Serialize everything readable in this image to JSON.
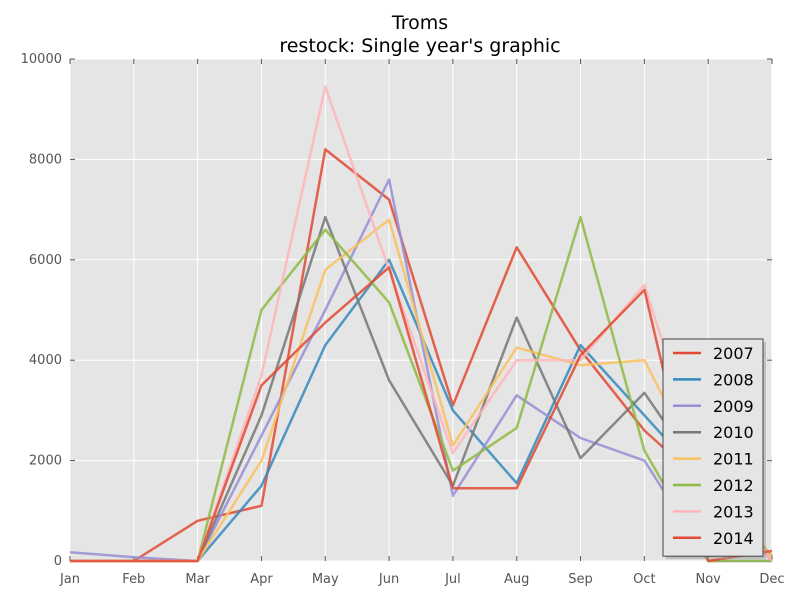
{
  "chart_data": {
    "type": "line",
    "title": "Troms",
    "subtitle": "restock: Single year's graphic",
    "xlabel": "",
    "ylabel": "",
    "categories": [
      "Jan",
      "Feb",
      "Mar",
      "Apr",
      "May",
      "Jun",
      "Jul",
      "Aug",
      "Sep",
      "Oct",
      "Nov",
      "Dec"
    ],
    "ylim": [
      0,
      10000
    ],
    "yticks": [
      0,
      2000,
      4000,
      6000,
      8000,
      10000
    ],
    "grid": true,
    "legend_position": "lower-right",
    "background": "#e5e5e5",
    "series": [
      {
        "name": "2007",
        "color": "#e24a33",
        "values": [
          0,
          0,
          800,
          1100,
          8200,
          7200,
          3100,
          6250,
          4200,
          2600,
          1450,
          0
        ]
      },
      {
        "name": "2008",
        "color": "#348abd",
        "values": [
          0,
          0,
          0,
          1500,
          4300,
          6000,
          3000,
          1550,
          4300,
          2900,
          1500,
          100
        ]
      },
      {
        "name": "2009",
        "color": "#988ed5",
        "values": [
          175,
          75,
          0,
          2500,
          5000,
          7600,
          1300,
          3300,
          2450,
          2000,
          0,
          0
        ]
      },
      {
        "name": "2010",
        "color": "#777777",
        "values": [
          0,
          0,
          0,
          2900,
          6850,
          3600,
          1500,
          4850,
          2050,
          3350,
          1500,
          100
        ]
      },
      {
        "name": "2011",
        "color": "#fbc15e",
        "values": [
          0,
          0,
          0,
          2000,
          5800,
          6800,
          2300,
          4250,
          3900,
          4000,
          1500,
          100
        ]
      },
      {
        "name": "2012",
        "color": "#8eba42",
        "values": [
          0,
          0,
          0,
          5000,
          6600,
          5150,
          1800,
          2650,
          6850,
          2200,
          0,
          0
        ]
      },
      {
        "name": "2013",
        "color": "#ffb5b8",
        "values": [
          0,
          0,
          0,
          3700,
          9450,
          5800,
          2150,
          4000,
          4000,
          5500,
          1500,
          0
        ]
      },
      {
        "name": "2014",
        "color": "#e24a33",
        "values": [
          0,
          0,
          0,
          3500,
          4750,
          5850,
          1450,
          1450,
          4100,
          5400,
          0,
          200
        ]
      }
    ]
  }
}
